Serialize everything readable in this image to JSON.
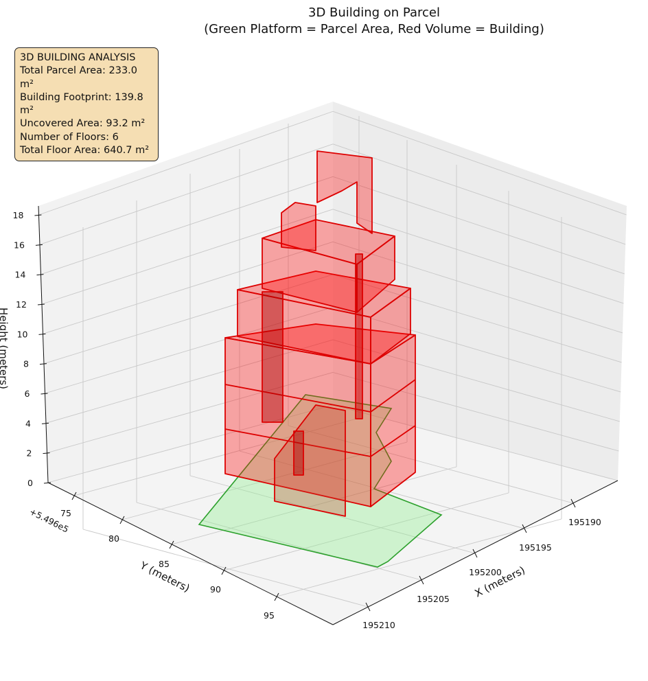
{
  "chart_data": {
    "type": "3d-polygon",
    "title": "3D Building on Parcel",
    "subtitle": "(Green Platform = Parcel Area, Red Volume = Building)",
    "xlabel": "X (meters)",
    "ylabel": "Y (meters)",
    "zlabel": "Height (meters)",
    "x_ticks": [
      "195190",
      "195195",
      "195200",
      "195205",
      "195210"
    ],
    "y_ticks": [
      "75",
      "80",
      "85",
      "90",
      "95"
    ],
    "y_offset": "+5.496e5",
    "z_ticks": [
      "0",
      "2",
      "4",
      "6",
      "8",
      "10",
      "12",
      "14",
      "16",
      "18"
    ],
    "zlim": [
      0,
      18
    ],
    "series": [
      {
        "name": "Parcel Area",
        "color": "#2ca02c"
      },
      {
        "name": "Building",
        "color": "#ff0000"
      }
    ],
    "annotation": {
      "heading": "3D BUILDING ANALYSIS",
      "lines": [
        "Total Parcel Area: 233.0 m²",
        "Building Footprint: 139.8 m²",
        "Uncovered Area: 93.2 m²",
        "Number of Floors: 6",
        "Total Floor Area: 640.7 m²"
      ]
    },
    "stats": {
      "parcel_area": 233.0,
      "footprint": 139.8,
      "uncovered": 93.2,
      "floors": 6,
      "floor_area": 640.7
    }
  }
}
